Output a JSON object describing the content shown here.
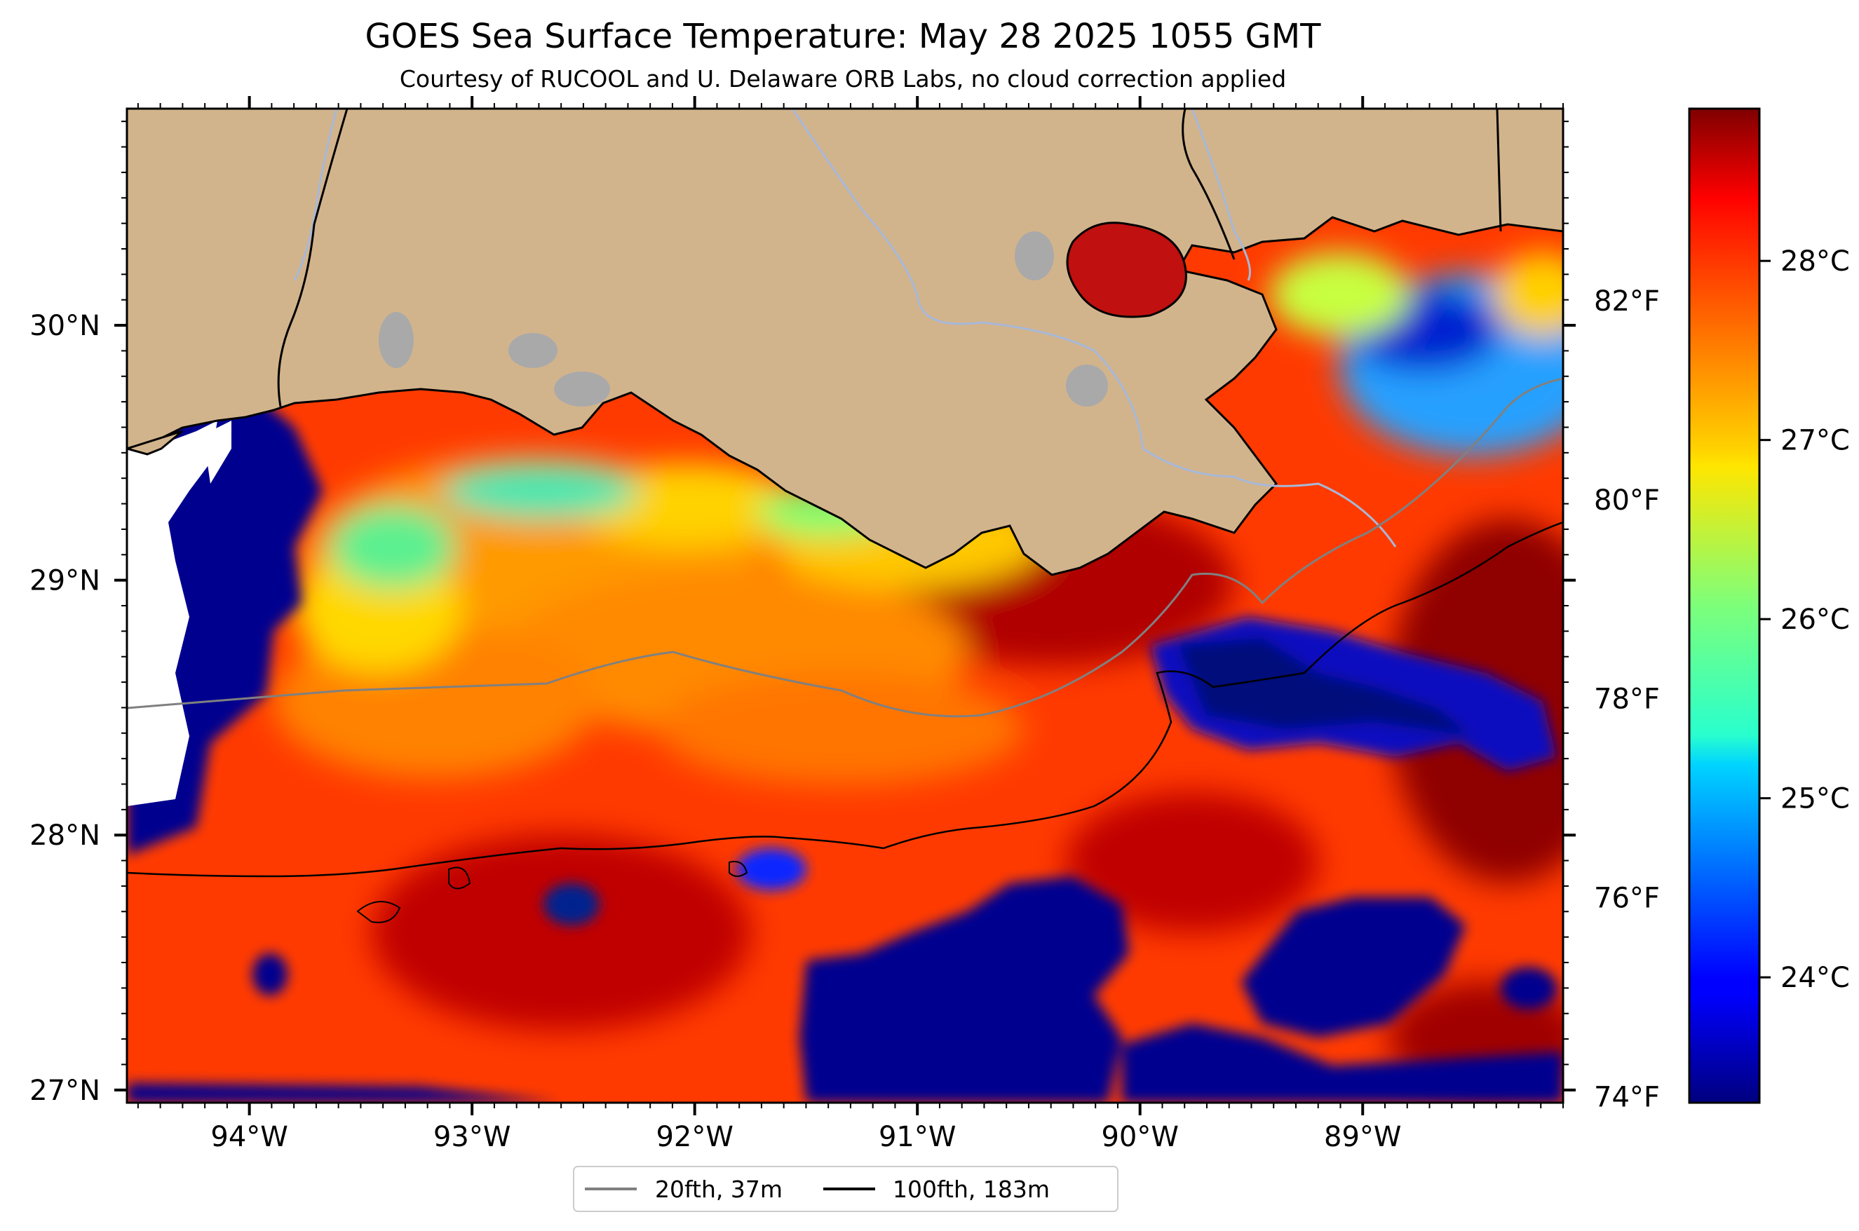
{
  "title": "GOES Sea Surface Temperature: May 28 2025 1055 GMT",
  "subtitle": "Courtesy of RUCOOL and U. Delaware ORB Labs, no cloud correction applied",
  "map": {
    "lon_range": [
      -94.55,
      -88.1
    ],
    "lat_range": [
      26.95,
      30.85
    ],
    "x_ticks": [
      {
        "lon": -94,
        "label": "94°W"
      },
      {
        "lon": -93,
        "label": "93°W"
      },
      {
        "lon": -92,
        "label": "92°W"
      },
      {
        "lon": -91,
        "label": "91°W"
      },
      {
        "lon": -90,
        "label": "90°W"
      },
      {
        "lon": -89,
        "label": "89°W"
      }
    ],
    "y_ticks": [
      {
        "lat": 27,
        "label": "27°N"
      },
      {
        "lat": 28,
        "label": "28°N"
      },
      {
        "lat": 29,
        "label": "29°N"
      },
      {
        "lat": 30,
        "label": "30°N"
      }
    ],
    "land_color": "#d2b48c",
    "missing_color": "#ffffff",
    "lake_color": "#a9a9a9",
    "river_color": "#a7b8d8"
  },
  "colorbar": {
    "colormap": "jet",
    "range_c": [
      23.3,
      28.85
    ],
    "celsius_ticks": [
      {
        "value": 24,
        "label": "24°C"
      },
      {
        "value": 25,
        "label": "25°C"
      },
      {
        "value": 26,
        "label": "26°C"
      },
      {
        "value": 27,
        "label": "27°C"
      },
      {
        "value": 28,
        "label": "28°C"
      }
    ],
    "fahrenheit_ticks": [
      {
        "value": 74,
        "label": "74°F"
      },
      {
        "value": 76,
        "label": "76°F"
      },
      {
        "value": 78,
        "label": "78°F"
      },
      {
        "value": 80,
        "label": "80°F"
      },
      {
        "value": 82,
        "label": "82°F"
      }
    ]
  },
  "legend": [
    {
      "label": "20fth, 37m",
      "color": "#808080"
    },
    {
      "label": "100fth, 183m",
      "color": "#000000"
    }
  ]
}
